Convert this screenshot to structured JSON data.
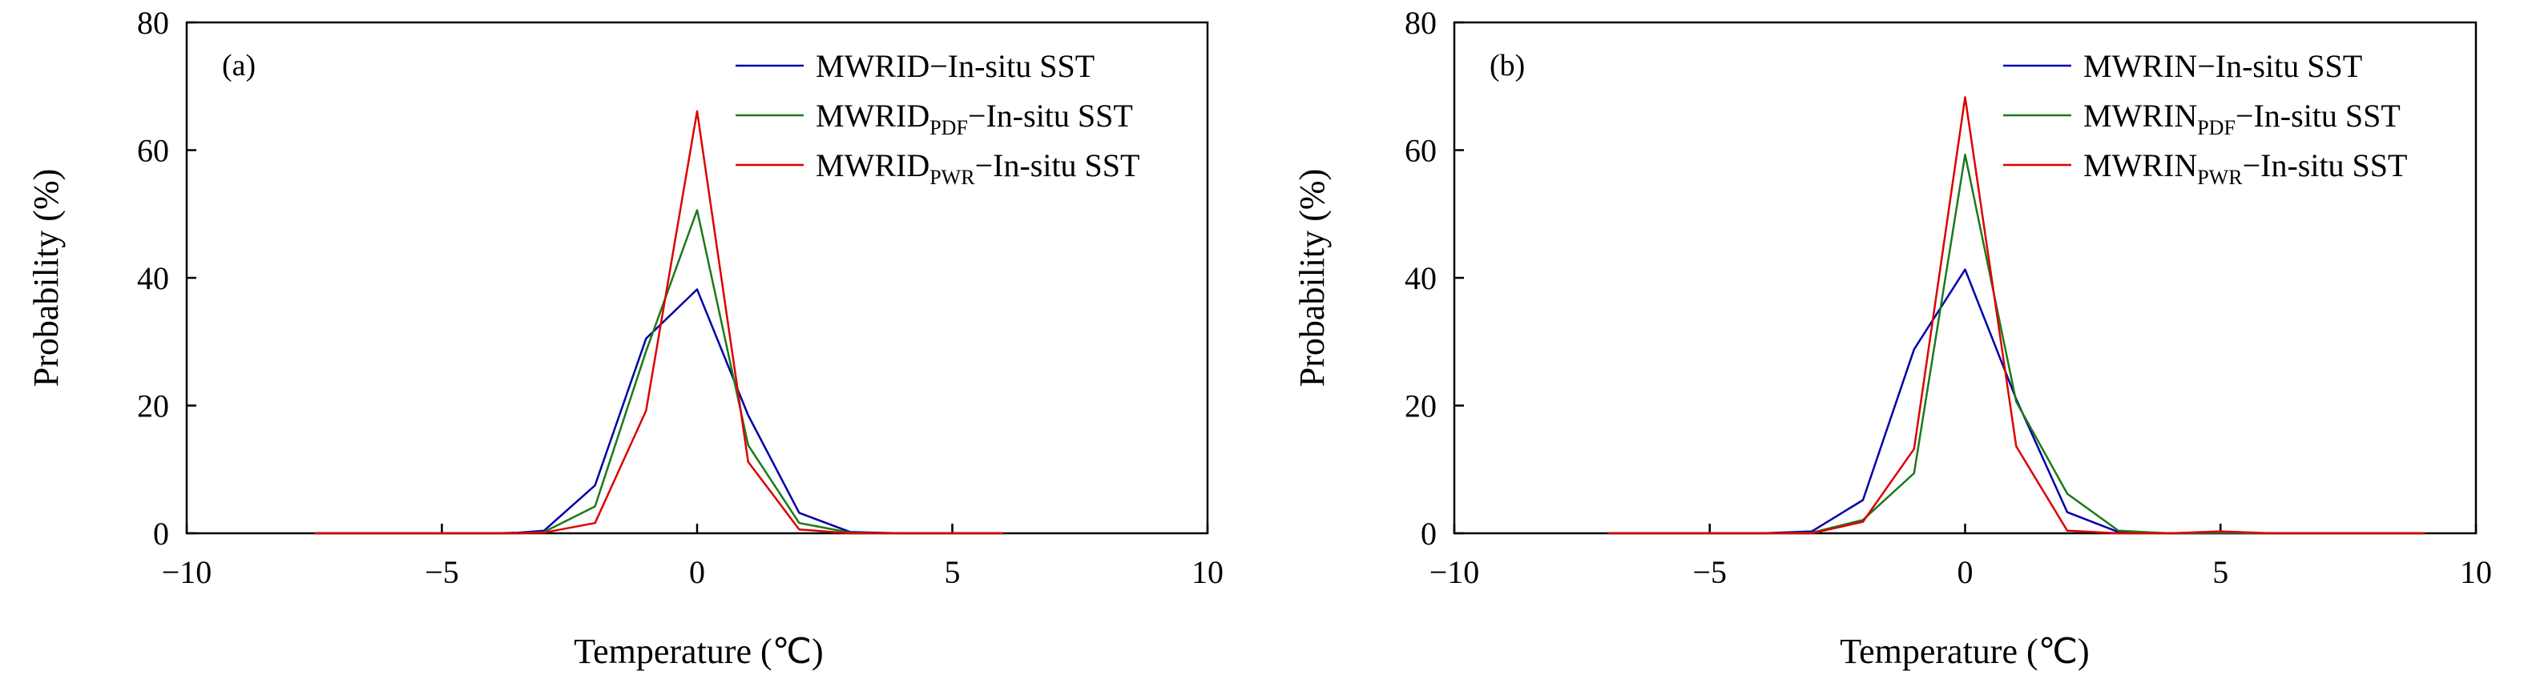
{
  "chart_data": [
    {
      "type": "line",
      "panel_label": "(a)",
      "xlabel": "Temperature (℃)",
      "ylabel": "Probability (%)",
      "xlim": [
        -10,
        10
      ],
      "ylim": [
        0,
        80
      ],
      "xticks": [
        -10,
        -5,
        0,
        5,
        10
      ],
      "yticks": [
        0,
        20,
        40,
        60,
        80
      ],
      "xtick_labels": [
        "−10",
        "−5",
        "0",
        "5",
        "10"
      ],
      "ytick_labels": [
        "0",
        "20",
        "40",
        "60",
        "80"
      ],
      "grid": false,
      "legend_position": "top-right",
      "series": [
        {
          "name": "MWRID−In-situ SST",
          "legend": {
            "main": "MWRID",
            "sub": "",
            "rest": "−In-situ SST"
          },
          "color": "#0000aa",
          "x": [
            -7.5,
            -7,
            -6,
            -5,
            -4,
            -3.5,
            -3,
            -2,
            -1,
            0,
            1,
            2,
            3,
            4,
            5,
            6
          ],
          "y": [
            0,
            0,
            0,
            0,
            0,
            0.1,
            0.4,
            7.5,
            30.5,
            38.2,
            18.5,
            3.2,
            0.2,
            0,
            0,
            0
          ]
        },
        {
          "name": "MWRIDPDF−In-situ SST",
          "legend": {
            "main": "MWRID",
            "sub": "PDF",
            "rest": "−In-situ SST"
          },
          "color": "#1a7a1a",
          "x": [
            -7.5,
            -7,
            -6,
            -5,
            -4,
            -3.5,
            -3,
            -2,
            -1,
            0,
            1,
            2,
            3,
            4,
            5,
            6
          ],
          "y": [
            0,
            0,
            0,
            0,
            0,
            0,
            0.2,
            4.2,
            28.5,
            50.6,
            13.8,
            1.6,
            0.1,
            0,
            0,
            0
          ]
        },
        {
          "name": "MWRIDPWR−In-situ SST",
          "legend": {
            "main": "MWRID",
            "sub": "PWR",
            "rest": "−In-situ SST"
          },
          "color": "#dd0000",
          "x": [
            -7.5,
            -7,
            -6,
            -5,
            -4,
            -3.5,
            -3,
            -2,
            -1,
            0,
            1,
            2,
            3,
            4,
            5,
            6
          ],
          "y": [
            0,
            0,
            0,
            0,
            0,
            0,
            0.1,
            1.6,
            19.2,
            66.1,
            11.2,
            0.6,
            0,
            0,
            0,
            0
          ]
        }
      ]
    },
    {
      "type": "line",
      "panel_label": "(b)",
      "xlabel": "Temperature (℃)",
      "ylabel": "Probability (%)",
      "xlim": [
        -10,
        10
      ],
      "ylim": [
        0,
        80
      ],
      "xticks": [
        -10,
        -5,
        0,
        5,
        10
      ],
      "yticks": [
        0,
        20,
        40,
        60,
        80
      ],
      "xtick_labels": [
        "−10",
        "−5",
        "0",
        "5",
        "10"
      ],
      "ytick_labels": [
        "0",
        "20",
        "40",
        "60",
        "80"
      ],
      "grid": false,
      "legend_position": "top-right",
      "series": [
        {
          "name": "MWRIN−In-situ SST",
          "legend": {
            "main": "MWRIN",
            "sub": "",
            "rest": "−In-situ SST"
          },
          "color": "#0000aa",
          "x": [
            -7,
            -6,
            -5,
            -4,
            -3,
            -2,
            -1,
            0,
            1,
            2,
            3,
            4,
            5,
            6,
            7,
            8,
            9
          ],
          "y": [
            0,
            0,
            0,
            0,
            0.3,
            5.2,
            28.8,
            41.3,
            21.0,
            3.3,
            0.2,
            0,
            0,
            0,
            0,
            0,
            0
          ]
        },
        {
          "name": "MWRINPDF−In-situ SST",
          "legend": {
            "main": "MWRIN",
            "sub": "PDF",
            "rest": "−In-situ SST"
          },
          "color": "#1a7a1a",
          "x": [
            -7,
            -6,
            -5,
            -4,
            -3,
            -2,
            -1,
            0,
            1,
            2,
            3,
            4,
            5,
            6,
            7,
            8,
            9
          ],
          "y": [
            0,
            0,
            0,
            0,
            0.1,
            2.1,
            9.4,
            59.3,
            20.6,
            6.2,
            0.4,
            0,
            0.1,
            0,
            0,
            0,
            0
          ]
        },
        {
          "name": "MWRINPWR−In-situ SST",
          "legend": {
            "main": "MWRIN",
            "sub": "PWR",
            "rest": "−In-situ SST"
          },
          "color": "#dd0000",
          "x": [
            -7,
            -6,
            -5,
            -4,
            -3,
            -2,
            -1,
            0,
            1,
            2,
            3,
            4,
            5,
            6,
            7,
            8,
            9
          ],
          "y": [
            0,
            0,
            0,
            0,
            0,
            1.8,
            13.2,
            68.3,
            13.6,
            0.4,
            0,
            0,
            0.3,
            0,
            0,
            0,
            0
          ]
        }
      ]
    }
  ]
}
